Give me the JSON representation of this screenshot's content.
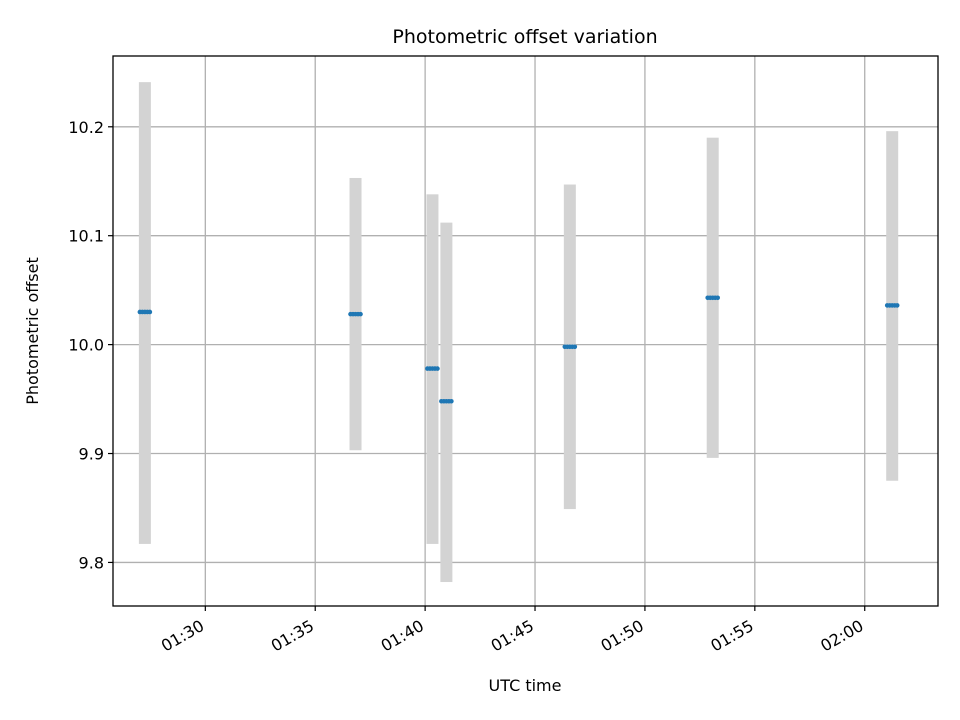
{
  "chart_data": {
    "type": "scatter",
    "title": "Photometric offset variation",
    "xlabel": "UTC time",
    "ylabel": "Photometric offset",
    "x_tick_labels": [
      "01:30",
      "01:35",
      "01:40",
      "01:45",
      "01:50",
      "01:55",
      "02:00"
    ],
    "y_tick_labels": [
      "9.8",
      "9.9",
      "10.0",
      "10.1",
      "10.2"
    ],
    "xlim": [
      "01:25:48",
      "02:03:20"
    ],
    "ylim": [
      9.76,
      10.265
    ],
    "grid": true,
    "errorbar_color": "#d3d3d3",
    "point_color": "#1f77b4",
    "points": [
      {
        "x": "01:27:15",
        "y": 10.03,
        "err_low": 9.817,
        "err_high": 10.241
      },
      {
        "x": "01:36:50",
        "y": 10.028,
        "err_low": 9.903,
        "err_high": 10.153
      },
      {
        "x": "01:40:20",
        "y": 9.978,
        "err_low": 9.817,
        "err_high": 10.138
      },
      {
        "x": "01:40:58",
        "y": 9.948,
        "err_low": 9.782,
        "err_high": 10.112
      },
      {
        "x": "01:46:35",
        "y": 9.998,
        "err_low": 9.849,
        "err_high": 10.147
      },
      {
        "x": "01:53:05",
        "y": 10.043,
        "err_low": 9.896,
        "err_high": 10.19
      },
      {
        "x": "02:01:15",
        "y": 10.036,
        "err_low": 9.875,
        "err_high": 10.196
      }
    ]
  }
}
